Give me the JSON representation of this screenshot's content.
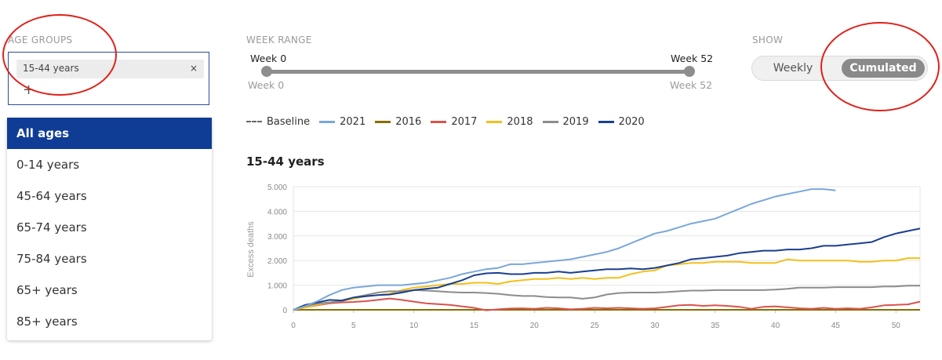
{
  "age_groups": {
    "label": "AGE GROUPS",
    "selected_chip": "15-44 years",
    "chip_remove": "×",
    "add_symbol": "+",
    "options": [
      {
        "label": "All ages",
        "highlighted": true
      },
      {
        "label": "0-14 years"
      },
      {
        "label": "45-64 years"
      },
      {
        "label": "65-74 years"
      },
      {
        "label": "75-84 years"
      },
      {
        "label": "65+ years"
      },
      {
        "label": "85+ years"
      }
    ]
  },
  "week_range": {
    "label": "WEEK RANGE",
    "start_top": "Week 0",
    "end_top": "Week 52",
    "start_bottom": "Week 0",
    "end_bottom": "Week 52",
    "min": 0,
    "max": 52
  },
  "show": {
    "label": "SHOW",
    "options": [
      "Weekly",
      "Cumulated"
    ],
    "selected": "Cumulated"
  },
  "legend": [
    {
      "name": "Baseline",
      "color": "#666666",
      "dashed": true
    },
    {
      "name": "2021",
      "color": "#7aa7d8"
    },
    {
      "name": "2016",
      "color": "#8a6d00"
    },
    {
      "name": "2017",
      "color": "#d9534f"
    },
    {
      "name": "2018",
      "color": "#f2c01c"
    },
    {
      "name": "2019",
      "color": "#8c8c8c"
    },
    {
      "name": "2020",
      "color": "#1a3f8f"
    }
  ],
  "chart_data": {
    "type": "line",
    "title": "15-44 years",
    "ylabel": "Excess deaths",
    "xlim": [
      0,
      52
    ],
    "ylim": [
      0,
      5000
    ],
    "x_ticks": [
      0,
      5,
      10,
      15,
      20,
      25,
      30,
      35,
      40,
      45,
      50
    ],
    "y_ticks": [
      0,
      1000,
      2000,
      3000,
      4000,
      5000
    ],
    "y_tick_labels": [
      "0",
      "1.000",
      "2.000",
      "3.000",
      "4.000",
      "5.000"
    ],
    "grid": true,
    "series": [
      {
        "name": "Baseline",
        "color": "#666666",
        "dashed": true,
        "x": [
          0,
          52
        ],
        "y": [
          0,
          0
        ]
      },
      {
        "name": "2016",
        "color": "#8a6d00",
        "x": [
          0,
          5,
          10,
          15,
          20,
          25,
          30,
          35,
          40,
          45,
          50,
          52
        ],
        "y": [
          0,
          0,
          0,
          0,
          0,
          0,
          0,
          0,
          0,
          0,
          0,
          0
        ]
      },
      {
        "name": "2017",
        "color": "#d9534f",
        "x": [
          0,
          1,
          2,
          3,
          4,
          5,
          6,
          7,
          8,
          9,
          10,
          11,
          12,
          13,
          14,
          15,
          16,
          17,
          18,
          19,
          20,
          21,
          22,
          23,
          24,
          25,
          26,
          27,
          28,
          29,
          30,
          31,
          32,
          33,
          34,
          35,
          36,
          37,
          38,
          39,
          40,
          41,
          42,
          43,
          44,
          45,
          46,
          47,
          48,
          49,
          50,
          51,
          52
        ],
        "y": [
          0,
          100,
          180,
          260,
          300,
          320,
          350,
          400,
          460,
          400,
          330,
          260,
          230,
          200,
          140,
          80,
          -20,
          20,
          50,
          60,
          40,
          80,
          60,
          20,
          40,
          80,
          60,
          80,
          60,
          40,
          60,
          120,
          180,
          200,
          160,
          180,
          160,
          120,
          40,
          120,
          140,
          100,
          60,
          40,
          80,
          40,
          60,
          40,
          100,
          180,
          200,
          220,
          330
        ]
      },
      {
        "name": "2018",
        "color": "#f2c01c",
        "x": [
          0,
          1,
          2,
          3,
          4,
          5,
          6,
          7,
          8,
          9,
          10,
          11,
          12,
          13,
          14,
          15,
          16,
          17,
          18,
          19,
          20,
          21,
          22,
          23,
          24,
          25,
          26,
          27,
          28,
          29,
          30,
          31,
          32,
          33,
          34,
          35,
          36,
          37,
          38,
          39,
          40,
          41,
          42,
          43,
          44,
          45,
          46,
          47,
          48,
          49,
          50,
          51,
          52
        ],
        "y": [
          0,
          100,
          200,
          300,
          350,
          450,
          550,
          600,
          650,
          800,
          900,
          950,
          1000,
          1050,
          1050,
          1100,
          1100,
          1050,
          1150,
          1200,
          1250,
          1250,
          1300,
          1250,
          1300,
          1250,
          1300,
          1300,
          1450,
          1550,
          1600,
          1800,
          1850,
          1900,
          1900,
          1950,
          1950,
          1950,
          1900,
          1900,
          1900,
          2050,
          2000,
          2000,
          2000,
          2000,
          2000,
          1950,
          1950,
          2000,
          2000,
          2100,
          2100
        ]
      },
      {
        "name": "2019",
        "color": "#8c8c8c",
        "x": [
          0,
          1,
          2,
          3,
          4,
          5,
          6,
          7,
          8,
          9,
          10,
          11,
          12,
          13,
          14,
          15,
          16,
          17,
          18,
          19,
          20,
          21,
          22,
          23,
          24,
          25,
          26,
          27,
          28,
          29,
          30,
          31,
          32,
          33,
          34,
          35,
          36,
          37,
          38,
          39,
          40,
          41,
          42,
          43,
          44,
          45,
          46,
          47,
          48,
          49,
          50,
          51,
          52
        ],
        "y": [
          0,
          150,
          250,
          300,
          350,
          500,
          600,
          700,
          750,
          750,
          800,
          780,
          750,
          720,
          700,
          700,
          680,
          650,
          600,
          560,
          560,
          520,
          500,
          500,
          450,
          500,
          620,
          680,
          700,
          700,
          700,
          720,
          750,
          780,
          780,
          800,
          800,
          800,
          800,
          800,
          820,
          850,
          900,
          900,
          900,
          920,
          920,
          920,
          920,
          950,
          950,
          980,
          980
        ]
      },
      {
        "name": "2020",
        "color": "#1a3f8f",
        "x": [
          0,
          1,
          2,
          3,
          4,
          5,
          6,
          7,
          8,
          9,
          10,
          11,
          12,
          13,
          14,
          15,
          16,
          17,
          18,
          19,
          20,
          21,
          22,
          23,
          24,
          25,
          26,
          27,
          28,
          29,
          30,
          31,
          32,
          33,
          34,
          35,
          36,
          37,
          38,
          39,
          40,
          41,
          42,
          43,
          44,
          45,
          46,
          47,
          48,
          49,
          50,
          51,
          52
        ],
        "y": [
          0,
          200,
          300,
          400,
          380,
          500,
          550,
          600,
          620,
          700,
          800,
          850,
          900,
          1050,
          1200,
          1400,
          1480,
          1500,
          1450,
          1450,
          1500,
          1500,
          1550,
          1500,
          1550,
          1600,
          1650,
          1650,
          1680,
          1650,
          1700,
          1800,
          1900,
          2050,
          2100,
          2150,
          2200,
          2300,
          2350,
          2400,
          2400,
          2450,
          2450,
          2500,
          2600,
          2600,
          2650,
          2700,
          2750,
          2950,
          3100,
          3200,
          3300
        ]
      },
      {
        "name": "2021",
        "color": "#7aa7d8",
        "x": [
          0,
          1,
          2,
          3,
          4,
          5,
          6,
          7,
          8,
          9,
          10,
          11,
          12,
          13,
          14,
          15,
          16,
          17,
          18,
          19,
          20,
          21,
          22,
          23,
          24,
          25,
          26,
          27,
          28,
          29,
          30,
          31,
          32,
          33,
          34,
          35,
          36,
          37,
          38,
          39,
          40,
          41,
          42,
          43,
          44,
          45
        ],
        "y": [
          0,
          150,
          350,
          600,
          800,
          900,
          950,
          1000,
          1000,
          1000,
          1050,
          1100,
          1200,
          1300,
          1450,
          1550,
          1650,
          1700,
          1850,
          1850,
          1900,
          1950,
          2000,
          2050,
          2150,
          2250,
          2350,
          2500,
          2700,
          2900,
          3100,
          3200,
          3350,
          3500,
          3600,
          3700,
          3900,
          4100,
          4300,
          4450,
          4600,
          4700,
          4800,
          4900,
          4900,
          4850
        ]
      }
    ]
  }
}
